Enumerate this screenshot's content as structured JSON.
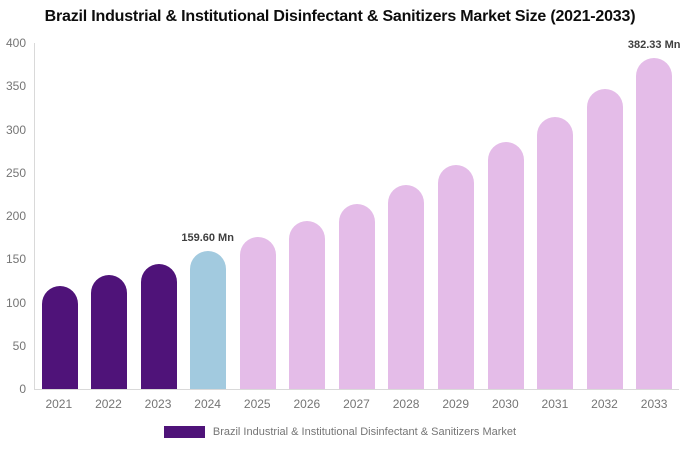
{
  "chart": {
    "title": "Brazil Industrial & Institutional Disinfectant & Sanitizers Market Size (2021-2033)"
  },
  "legend": {
    "label": "Brazil Industrial & Institutional Disinfectant & Sanitizers Market"
  },
  "chart_data": {
    "type": "bar",
    "title": "Brazil Industrial & Institutional Disinfectant & Sanitizers Market Size (2021-2033)",
    "categories": [
      "2021",
      "2022",
      "2023",
      "2024",
      "2025",
      "2026",
      "2027",
      "2028",
      "2029",
      "2030",
      "2031",
      "2032",
      "2033"
    ],
    "values": [
      119.3,
      131.4,
      144.8,
      159.6,
      175.9,
      193.8,
      213.5,
      235.3,
      259.3,
      285.7,
      314.8,
      346.9,
      382.33
    ],
    "unit": "Mn",
    "roles": [
      "historical",
      "historical",
      "historical",
      "base_year",
      "forecast",
      "forecast",
      "forecast",
      "forecast",
      "forecast",
      "forecast",
      "forecast",
      "forecast",
      "forecast"
    ],
    "value_labels": {
      "2024": "159.60 Mn",
      "2033": "382.33 Mn"
    },
    "colors": {
      "historical": "#4F1379",
      "base_year": "#A2CADF",
      "forecast": "#E4BCE8"
    },
    "axis_line_color": "#D9D9D9",
    "tick_text_color": "#757575",
    "value_label_color": "#3F3F3F",
    "xlabel": "",
    "ylabel": "",
    "ylim": [
      0,
      400
    ],
    "ytick_step": 50,
    "grid": false,
    "legend_position": "bottom",
    "series_name": "Brazil Industrial & Institutional Disinfectant & Sanitizers Market"
  }
}
